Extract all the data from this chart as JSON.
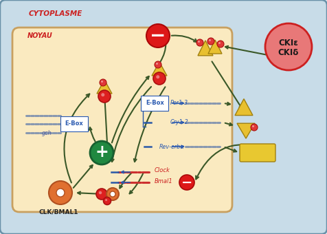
{
  "bg_outer": "#dce8f0",
  "bg_cytoplasm": "#c8dce8",
  "bg_nucleus": "#faeac0",
  "border_outer": "#a8c4d4",
  "border_cytoplasm": "#6890a8",
  "border_nucleus": "#c8a060",
  "red_dark": "#cc2020",
  "arrow_color": "#3a5828",
  "yellow_shape": "#e8c030",
  "yellow_rect_color": "#e8c830",
  "blue_text": "#2858b0",
  "red_text": "#cc2020",
  "green_circle_color": "#208840",
  "cki_bg": "#e87878",
  "cki_border": "#cc2020",
  "title_cytoplasm": "CYTOPLASME",
  "title_nucleus": "NOYAU",
  "label_clkbmal": "CLK/BMAL1",
  "label_cki": "CKIε\nCKIδ",
  "label_ebox": "E-Box",
  "label_per": "Per1-3",
  "label_cry": "Cry1-2",
  "label_rev": "Rev-erbα",
  "label_clock": "Clock",
  "label_bmal": "Bmal1",
  "label_gch": "gch"
}
